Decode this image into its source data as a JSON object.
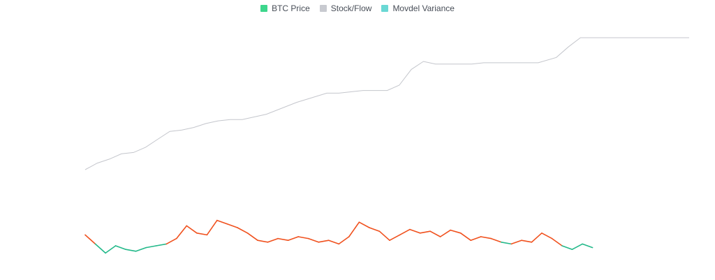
{
  "chart_data": {
    "type": "line",
    "legend_position": "top-center",
    "grid": false,
    "axes_visible": false,
    "x": {
      "start": 0,
      "end": 100,
      "unit": "index"
    },
    "series": [
      {
        "name": "Stock/Flow",
        "color": "#c4c6cc",
        "x": [
          0,
          2,
          4,
          6,
          8,
          10,
          12,
          14,
          16,
          18,
          20,
          22,
          24,
          26,
          30,
          35,
          40,
          42,
          44,
          46,
          48,
          50,
          52,
          54,
          56,
          58,
          60,
          62,
          64,
          66,
          70,
          75,
          78,
          80,
          82,
          84,
          86,
          88,
          90,
          95,
          100
        ],
        "values": [
          0.0,
          0.05,
          0.08,
          0.12,
          0.13,
          0.17,
          0.23,
          0.29,
          0.3,
          0.32,
          0.35,
          0.37,
          0.38,
          0.38,
          0.42,
          0.51,
          0.58,
          0.58,
          0.59,
          0.6,
          0.6,
          0.6,
          0.64,
          0.76,
          0.82,
          0.8,
          0.8,
          0.8,
          0.8,
          0.81,
          0.81,
          0.81,
          0.85,
          0.93,
          1.0,
          1.0,
          1.0,
          1.0,
          1.0,
          1.0,
          1.0
        ]
      },
      {
        "name": "BTC Price",
        "color_high": "#f0511e",
        "color_low": "#23b98a",
        "x_end": 84,
        "threshold": 0.35,
        "values": [
          0.55,
          0.3,
          0.05,
          0.25,
          0.15,
          0.1,
          0.2,
          0.25,
          0.3,
          0.45,
          0.8,
          0.6,
          0.55,
          0.95,
          0.85,
          0.75,
          0.6,
          0.4,
          0.35,
          0.45,
          0.4,
          0.5,
          0.45,
          0.35,
          0.4,
          0.3,
          0.5,
          0.9,
          0.75,
          0.65,
          0.4,
          0.55,
          0.7,
          0.6,
          0.65,
          0.5,
          0.68,
          0.6,
          0.4,
          0.5,
          0.45,
          0.35,
          0.3,
          0.4,
          0.35,
          0.6,
          0.45,
          0.25,
          0.15,
          0.3,
          0.2
        ]
      }
    ]
  },
  "legend": [
    {
      "label": "BTC Price",
      "color": "#3dd68c"
    },
    {
      "label": "Stock/Flow",
      "color": "#c8cad0"
    },
    {
      "label": "Movdel Variance",
      "color": "#6ad8d4"
    }
  ]
}
